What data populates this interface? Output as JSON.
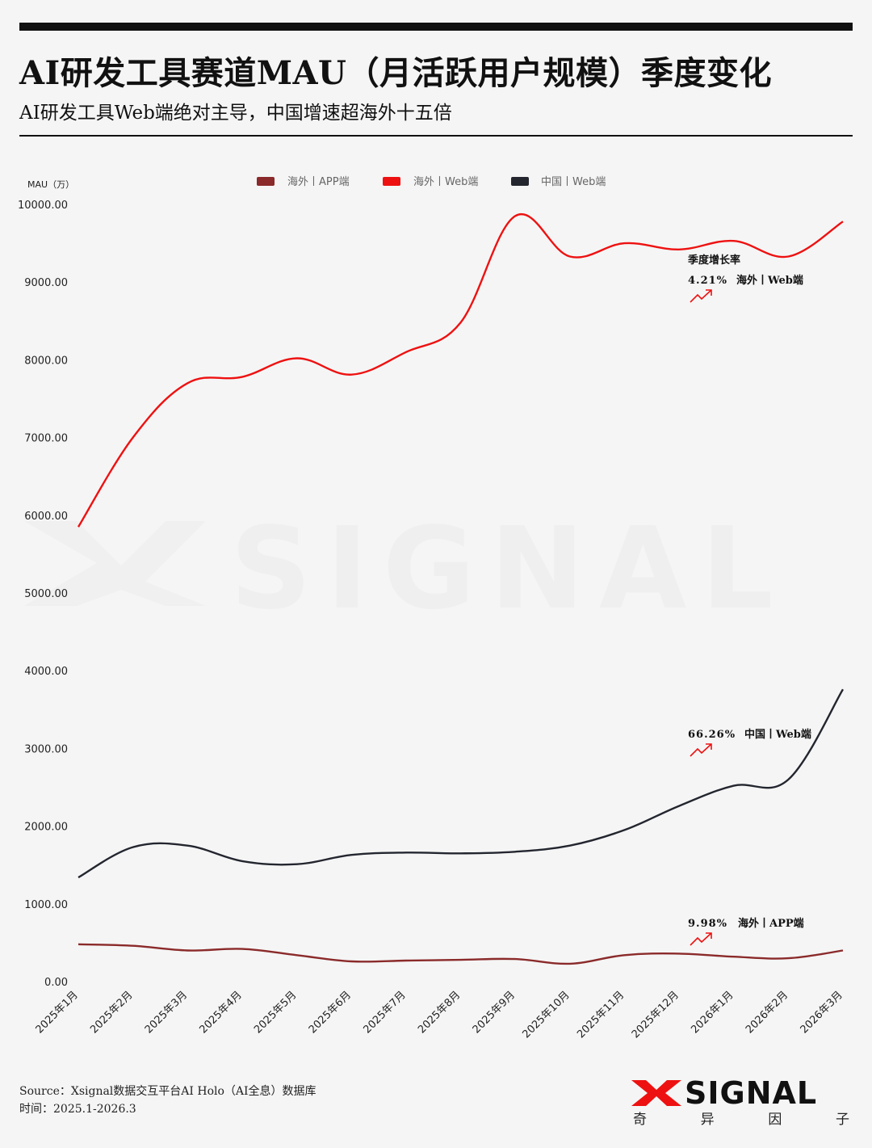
{
  "header": {
    "title": "AI研发工具赛道MAU（月活跃用户规模）季度变化",
    "subtitle": "AI研发工具Web端绝对主导，中国增速超海外十五倍"
  },
  "chart_data": {
    "type": "line",
    "ylabel": "MAU（万）",
    "categories": [
      "2025年1月",
      "2025年2月",
      "2025年3月",
      "2025年4月",
      "2025年5月",
      "2025年6月",
      "2025年7月",
      "2025年8月",
      "2025年9月",
      "2025年10月",
      "2025年11月",
      "2025年12月",
      "2026年1月",
      "2026年2月",
      "2026年3月"
    ],
    "y_ticks": [
      "0.00",
      "1000.00",
      "2000.00",
      "3000.00",
      "4000.00",
      "5000.00",
      "6000.00",
      "7000.00",
      "8000.00",
      "9000.00",
      "10000.00"
    ],
    "ylim": [
      0,
      10000
    ],
    "grid": false,
    "legend_position": "top",
    "series": [
      {
        "name": "海外丨APP端",
        "color": "#8b2a2a",
        "values": [
          480,
          460,
          400,
          420,
          340,
          260,
          270,
          280,
          290,
          230,
          340,
          360,
          320,
          300,
          400
        ]
      },
      {
        "name": "海外丨Web端",
        "color": "#ee1111",
        "values": [
          5850,
          7000,
          7700,
          7780,
          8020,
          7810,
          8100,
          8480,
          9850,
          9330,
          9500,
          9420,
          9530,
          9330,
          9780
        ]
      },
      {
        "name": "中国丨Web端",
        "color": "#23262f",
        "values": [
          1340,
          1730,
          1750,
          1550,
          1510,
          1630,
          1660,
          1650,
          1670,
          1750,
          1950,
          2260,
          2520,
          2600,
          3760
        ]
      }
    ],
    "annotations": {
      "heading": "季度增长率",
      "items": [
        {
          "value": "4.21%",
          "series": "海外丨Web端"
        },
        {
          "value": "66.26%",
          "series": "中国丨Web端"
        },
        {
          "value": "9.98%",
          "series": "海外丨APP端"
        }
      ]
    }
  },
  "watermark": {
    "text": "SIGNAL"
  },
  "footer": {
    "source": "Source：Xsignal数据交互平台AI Holo（AI全息）数据库",
    "time": "时间：2025.1-2026.3"
  },
  "brand": {
    "word": "SIGNAL",
    "chars": [
      "奇",
      "异",
      "因",
      "子"
    ]
  }
}
